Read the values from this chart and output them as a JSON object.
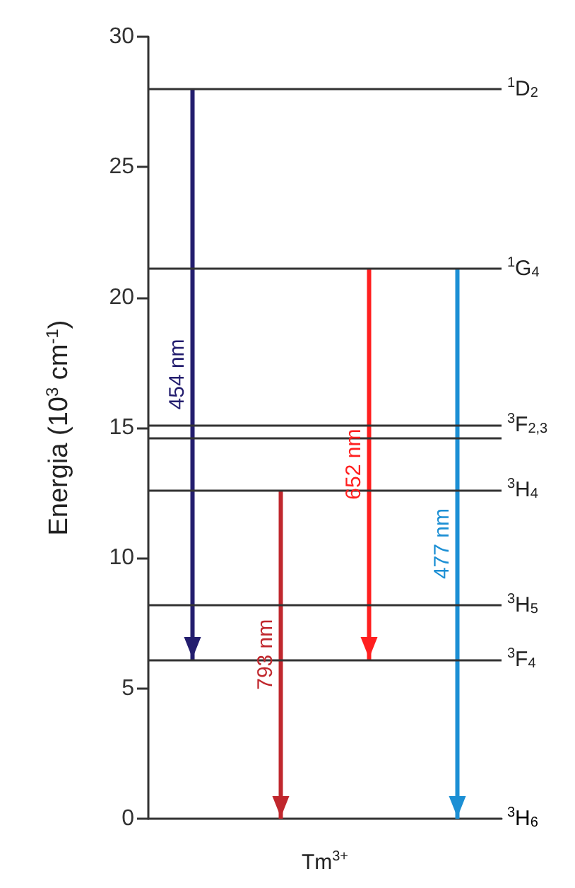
{
  "chart_data": {
    "type": "bar",
    "xlabel": "Tm$^{3+}$",
    "ylabel": "Energia (10$^{3}$ cm$^{-1}$)",
    "categories": [
      null,
      null,
      null,
      null
    ],
    "base": [
      6.1,
      0,
      6.1,
      0
    ],
    "values": [
      21.9,
      12.6,
      15,
      21.1
    ],
    "colors": [
      "#231d6e",
      "#c0272d",
      "#ff1f1f",
      "#1c8fd4"
    ],
    "annotations": [
      "454 nm",
      "793 nm",
      "652 nm",
      "477 nm",
      "$^{3}$H$_{6}$"
    ],
    "ylim": [
      0,
      30
    ],
    "yticks": [
      0,
      5,
      10,
      15,
      20,
      25,
      30
    ],
    "tick_labels": "y",
    "grid": false,
    "ref_lines": [
      {
        "axis": "y",
        "value": 28,
        "label": "$^{1}$D$_{2}$",
        "color": "#333333"
      },
      {
        "axis": "y",
        "value": 21.1,
        "label": "$^{1}$G$_{4}$",
        "color": "#333333"
      },
      {
        "axis": "y",
        "value": 15.1,
        "label": "$^{3}$F$_{2,3}$",
        "color": "#333333"
      },
      {
        "axis": "y",
        "value": 14.6,
        "label": null,
        "color": "#333333"
      },
      {
        "axis": "y",
        "value": 12.6,
        "label": "$^{3}$H$_{4}$",
        "color": "#333333"
      },
      {
        "axis": "y",
        "value": 8.2,
        "label": "$^{3}$H$_{5}$",
        "color": "#333333"
      },
      {
        "axis": "y",
        "value": 6.1,
        "label": "$^{3}$F$_{4}$",
        "color": "#333333"
      }
    ]
  }
}
